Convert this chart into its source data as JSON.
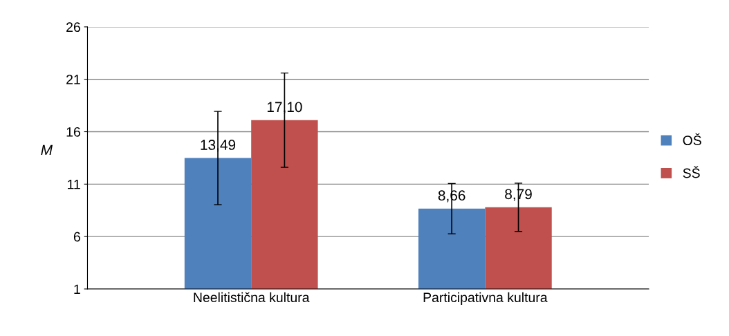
{
  "chart_data": {
    "type": "bar",
    "ylabel": "M",
    "categories": [
      "Neelitistična kultura",
      "Participativna kultura"
    ],
    "series": [
      {
        "name": "OŠ",
        "color": "#4f81bd",
        "values": [
          13.49,
          8.66
        ],
        "errors": [
          4.45,
          2.4
        ],
        "value_labels": [
          "13,49",
          "8,66"
        ]
      },
      {
        "name": "SŠ",
        "color": "#c0504d",
        "values": [
          17.1,
          8.79
        ],
        "errors": [
          4.5,
          2.3
        ],
        "value_labels": [
          "17,10",
          "8,79"
        ]
      }
    ],
    "ylim": [
      1,
      26
    ],
    "yticks": [
      1,
      6,
      11,
      16,
      21,
      26
    ],
    "grid": "y",
    "legend": "right"
  }
}
